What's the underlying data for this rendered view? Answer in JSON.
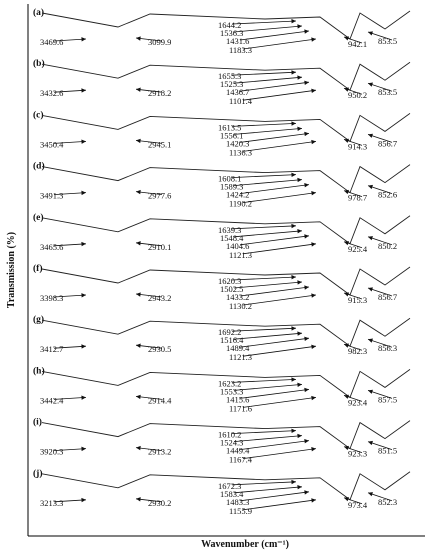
{
  "chart_data": {
    "type": "line",
    "title": "",
    "xlabel": "Wavenumber (cm⁻¹)",
    "ylabel": "Transmission (%)",
    "x_direction": "decreasing",
    "xlim": [
      4000,
      600
    ],
    "grid": false,
    "legend": "none",
    "colors": {
      "trace": "#222222",
      "text": "#111111",
      "axis": "#000000"
    },
    "series": [
      {
        "name": "(a)",
        "annotations": [
          3469.6,
          3099.9,
          1644.2,
          1536.3,
          1431.6,
          1183.3,
          942.1,
          853.5
        ]
      },
      {
        "name": "(b)",
        "annotations": [
          3432.6,
          2918.2,
          1655.3,
          1525.3,
          1436.7,
          1101.4,
          950.2,
          853.5
        ]
      },
      {
        "name": "(c)",
        "annotations": [
          3450.4,
          2945.1,
          1613.5,
          1556.1,
          1420.3,
          1136.3,
          914.3,
          856.7
        ]
      },
      {
        "name": "(d)",
        "annotations": [
          3491.3,
          2977.6,
          1608.1,
          1589.3,
          1424.2,
          1190.2,
          978.7,
          852.6
        ]
      },
      {
        "name": "(e)",
        "annotations": [
          3465.6,
          2910.1,
          1639.3,
          1548.4,
          1404.6,
          1121.3,
          925.4,
          850.2
        ]
      },
      {
        "name": "(f)",
        "annotations": [
          3398.3,
          2943.2,
          1620.3,
          1502.5,
          1433.2,
          1130.2,
          915.3,
          856.7
        ]
      },
      {
        "name": "(g)",
        "annotations": [
          3412.7,
          2930.5,
          1692.2,
          1516.4,
          1489.4,
          1121.3,
          982.3,
          856.3
        ]
      },
      {
        "name": "(h)",
        "annotations": [
          3442.4,
          2914.4,
          1623.2,
          1553.3,
          1415.6,
          1171.6,
          923.4,
          857.5
        ]
      },
      {
        "name": "(i)",
        "annotations": [
          3920.3,
          2913.2,
          1610.2,
          1524.3,
          1449.4,
          1167.4,
          923.3,
          851.5
        ]
      },
      {
        "name": "(j)",
        "annotations": [
          3213.3,
          2930.2,
          1672.3,
          1583.4,
          1483.3,
          1155.9,
          973.4,
          852.3
        ]
      }
    ]
  }
}
